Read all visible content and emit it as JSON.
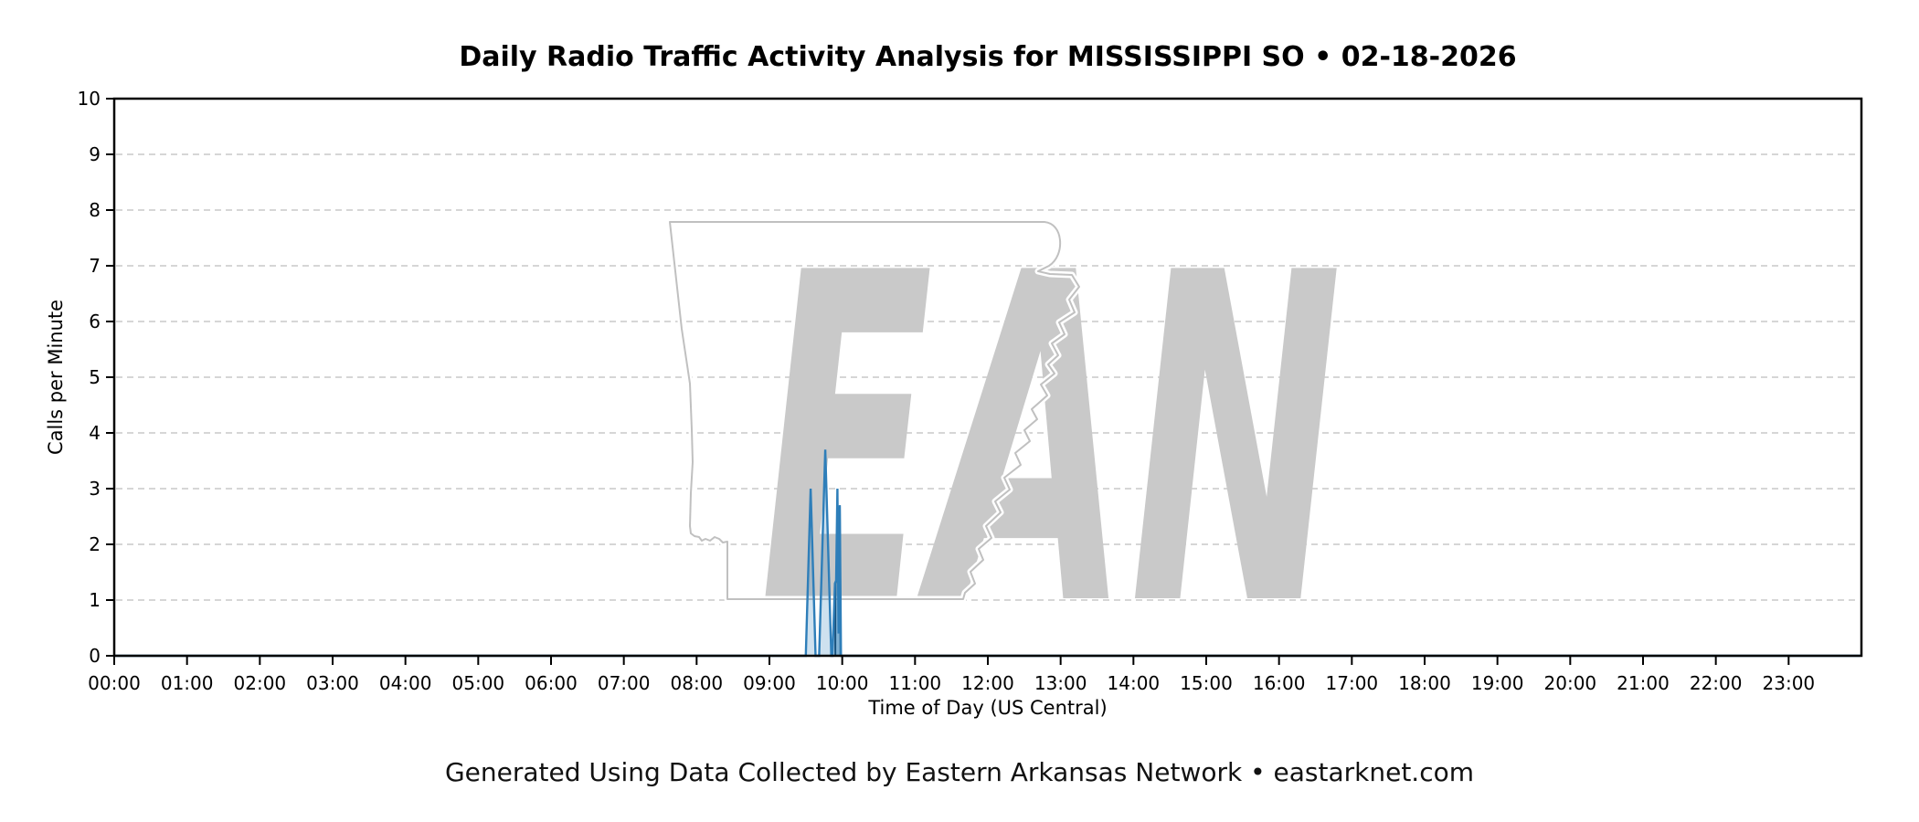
{
  "page": {
    "title": "Daily Radio Traffic Activity Analysis for MISSISSIPPI SO • 02-18-2026",
    "footer": "Generated Using Data Collected by Eastern Arkansas Network • eastarknet.com"
  },
  "chart_data": {
    "type": "line",
    "title": "Daily Radio Traffic Activity Analysis for MISSISSIPPI SO • 02-18-2026",
    "xlabel": "Time of Day (US Central)",
    "ylabel": "Calls per Minute",
    "ylim": [
      0,
      10
    ],
    "xlim_hours": [
      0,
      24
    ],
    "grid": "horizontal dashed gridlines at each integer 1-9",
    "legend": "none",
    "ytick_labels": [
      "0",
      "1",
      "2",
      "3",
      "4",
      "5",
      "6",
      "7",
      "8",
      "9",
      "10"
    ],
    "xtick_labels": [
      "00:00",
      "01:00",
      "02:00",
      "03:00",
      "04:00",
      "05:00",
      "06:00",
      "07:00",
      "08:00",
      "09:00",
      "10:00",
      "11:00",
      "12:00",
      "13:00",
      "14:00",
      "15:00",
      "16:00",
      "17:00",
      "18:00",
      "19:00",
      "20:00",
      "21:00",
      "22:00",
      "23:00"
    ],
    "series": [
      {
        "name": "Calls per Minute",
        "color": "#2e7eb9",
        "fill": "rgba(31,119,180,0.22)",
        "note": "value is 0 for the whole day except 09:30-09:59; x unit is minutes since midnight, linear interpolation between breakpoints",
        "breakpoints_min_value": [
          [
            0,
            0
          ],
          [
            570,
            0
          ],
          [
            574,
            3.0
          ],
          [
            578,
            0
          ],
          [
            581,
            0
          ],
          [
            586,
            3.7
          ],
          [
            591,
            0
          ],
          [
            592,
            0
          ],
          [
            594,
            1.3
          ],
          [
            595,
            1.35
          ],
          [
            596,
            3.0
          ],
          [
            597,
            0.4
          ],
          [
            598,
            2.7
          ],
          [
            599,
            0
          ],
          [
            1439,
            0
          ]
        ]
      }
    ],
    "overlap_wedge": {
      "note": "darker overlapping spike visible inside the 09:52-09:59 cluster",
      "fill": "rgba(31,119,180,0.45)",
      "stroke": "#17517d",
      "points_min_value": [
        [
          594.3,
          0
        ],
        [
          594.3,
          1.3
        ],
        [
          595.3,
          1.35
        ],
        [
          598,
          2.7
        ],
        [
          598.6,
          0
        ]
      ]
    },
    "watermark": {
      "text": "EAN",
      "shape": "Arkansas state outline with Mississippi River east border",
      "letter_color": "#c9c9c9",
      "outline_color": "#c0c0c0"
    },
    "style": {
      "spine_color": "#000000",
      "text_color": "#000000",
      "grid_color": "#c9c9c9",
      "background": "#ffffff"
    }
  }
}
